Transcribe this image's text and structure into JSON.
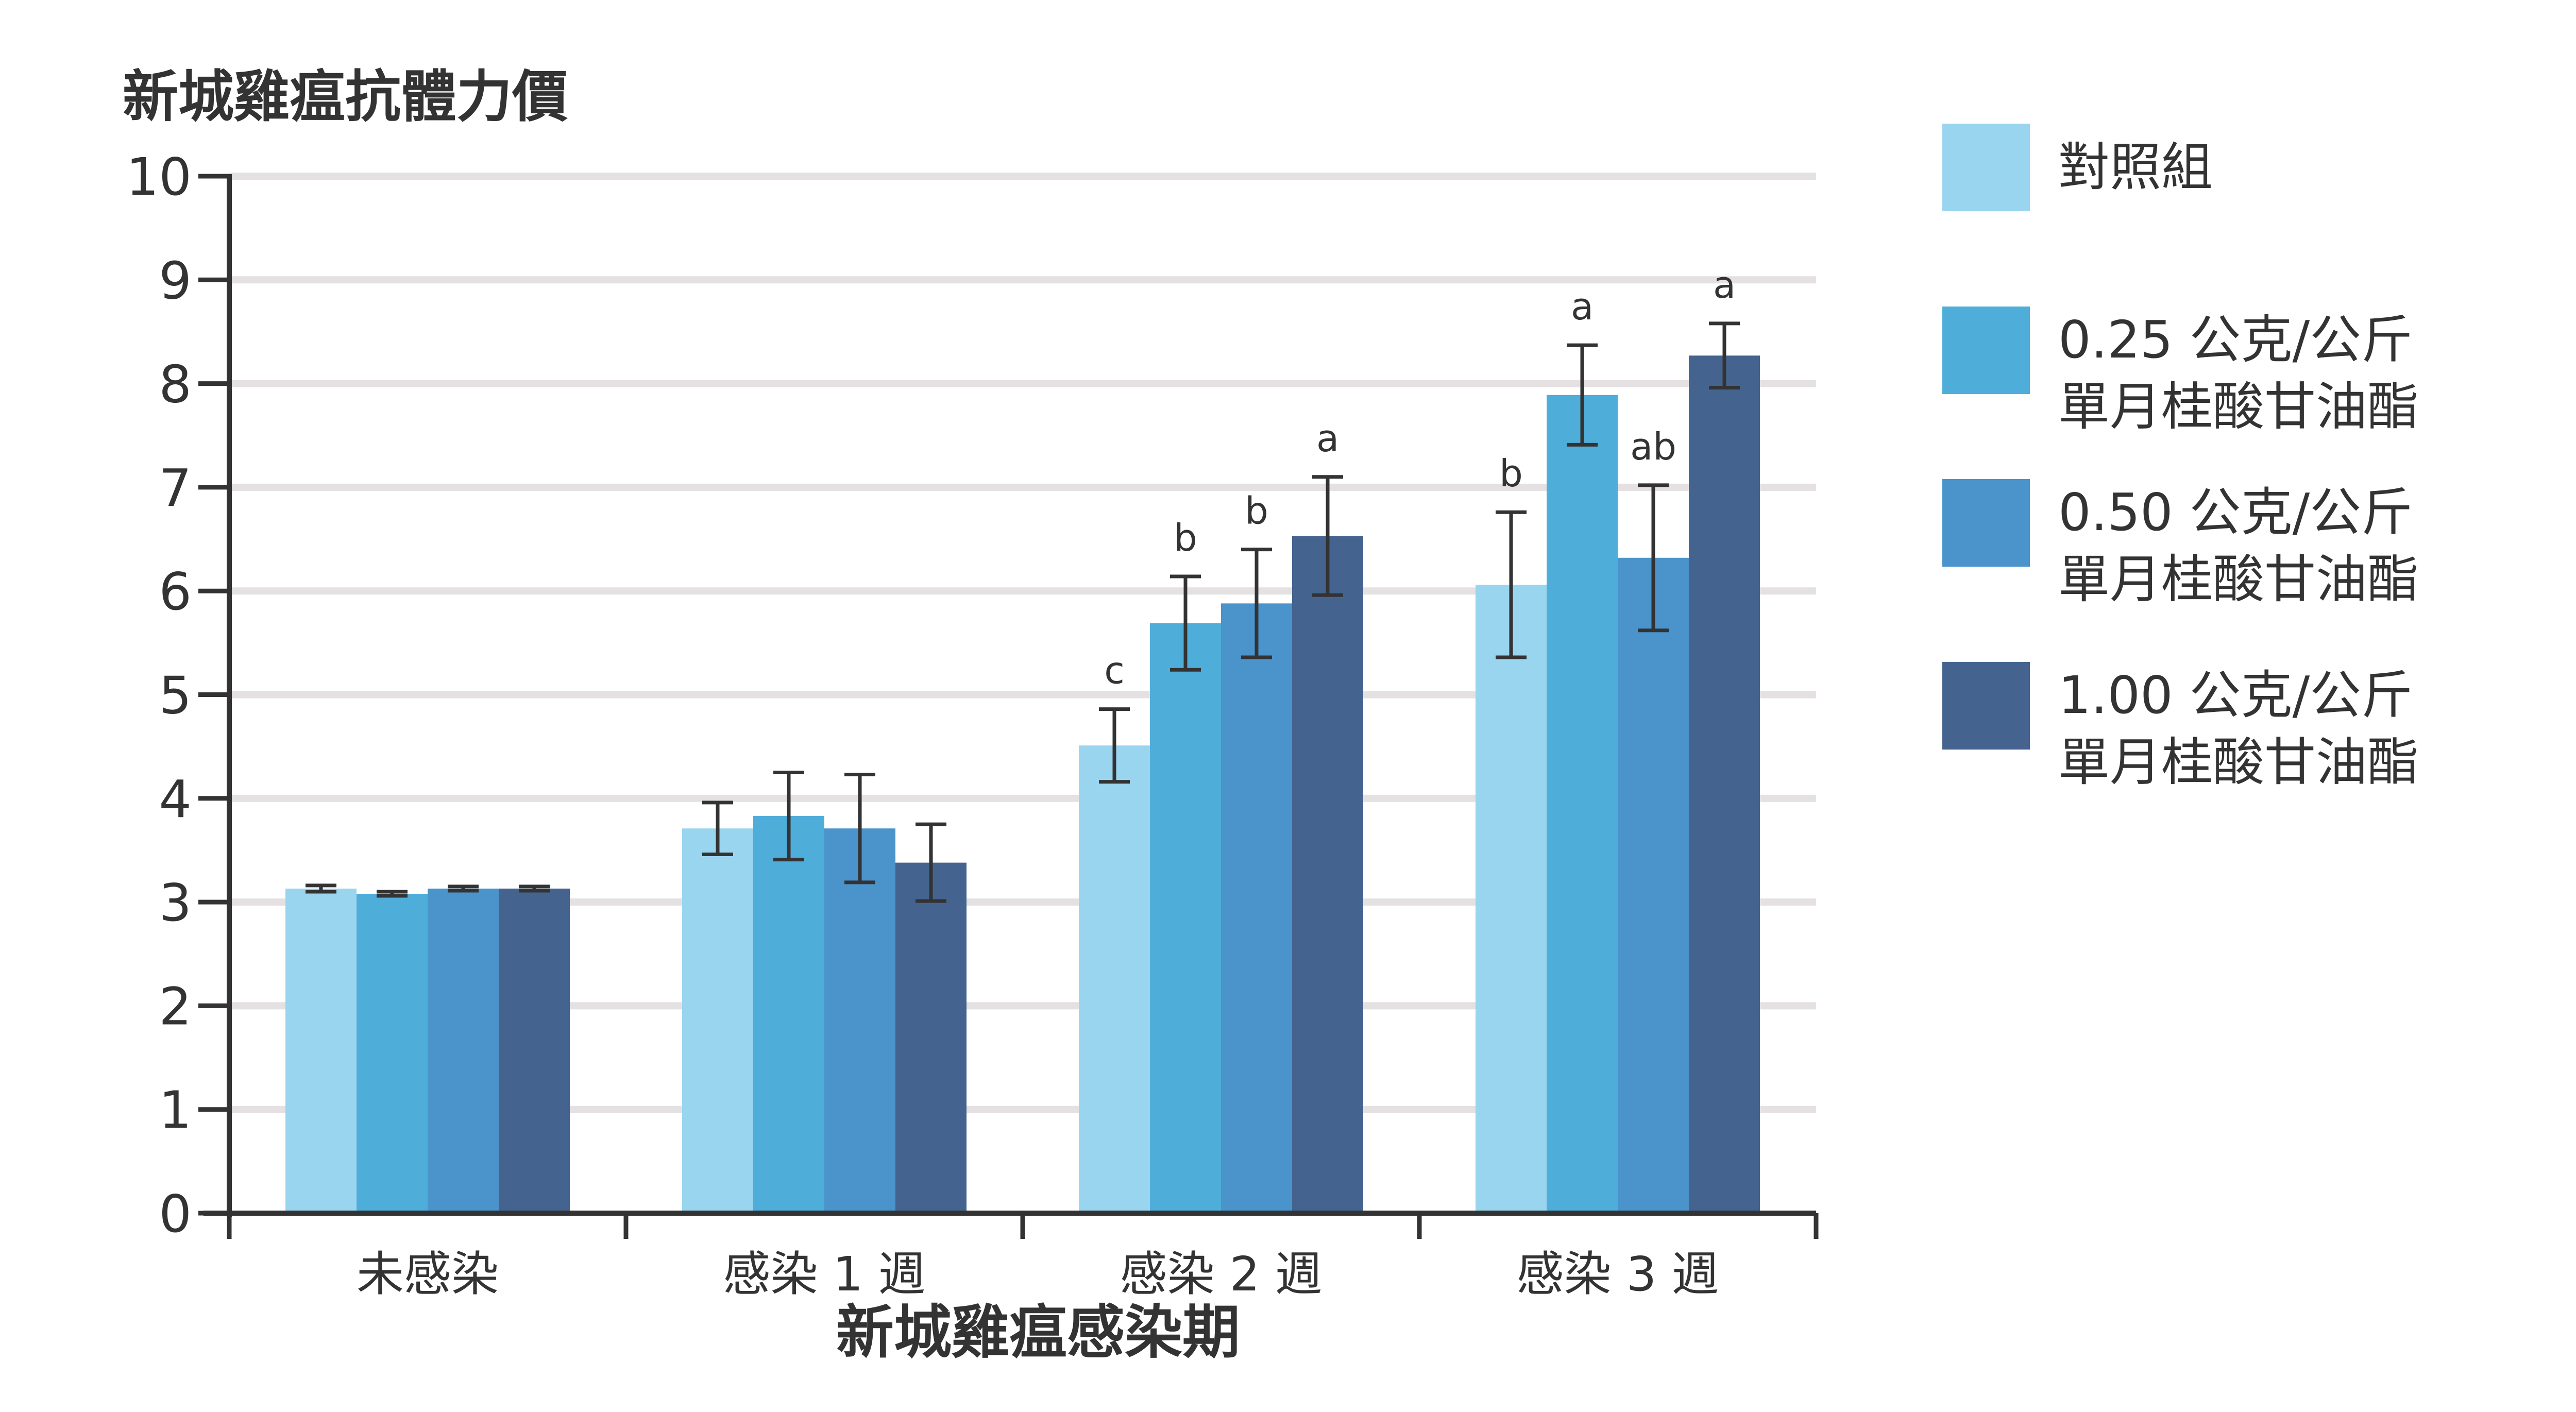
{
  "chart_data": {
    "type": "bar",
    "ylabel": "新城雞瘟抗體力價",
    "xlabel": "新城雞瘟感染期",
    "ylim": [
      0,
      10
    ],
    "yticks": [
      "0",
      "1",
      "2",
      "3",
      "4",
      "5",
      "6",
      "7",
      "8",
      "9",
      "10"
    ],
    "grid": true,
    "legend_position": "right",
    "categories": [
      "未感染",
      "感染 1 週",
      "感染 2 週",
      "感染 3 週"
    ],
    "series": [
      {
        "name": "對照組",
        "name_lines": [
          "對照組"
        ],
        "color": "#9ad5ef",
        "values": [
          3.13,
          3.71,
          4.51,
          6.06
        ],
        "errors": [
          0.03,
          0.25,
          0.35,
          0.7
        ],
        "annotations": [
          "",
          "",
          "c",
          "b"
        ]
      },
      {
        "name": "0.25 公克/公斤 單月桂酸甘油酯",
        "name_lines": [
          "0.25 公克/公斤",
          "單月桂酸甘油酯"
        ],
        "color": "#4fadda",
        "values": [
          3.08,
          3.83,
          5.69,
          7.89
        ],
        "errors": [
          0.02,
          0.42,
          0.45,
          0.48
        ],
        "annotations": [
          "",
          "",
          "b",
          "a"
        ]
      },
      {
        "name": "0.50 公克/公斤 單月桂酸甘油酯",
        "name_lines": [
          "0.50 公克/公斤",
          "單月桂酸甘油酯"
        ],
        "color": "#4b93cb",
        "values": [
          3.13,
          3.71,
          5.88,
          6.32
        ],
        "errors": [
          0.02,
          0.52,
          0.52,
          0.7
        ],
        "annotations": [
          "",
          "",
          "b",
          "ab"
        ]
      },
      {
        "name": "1.00 公克/公斤 單月桂酸甘油酯",
        "name_lines": [
          "1.00 公克/公斤",
          "單月桂酸甘油酯"
        ],
        "color": "#44648f",
        "values": [
          3.13,
          3.38,
          6.53,
          8.27
        ],
        "errors": [
          0.02,
          0.37,
          0.57,
          0.31
        ],
        "annotations": [
          "",
          "",
          "a",
          "a"
        ]
      }
    ]
  }
}
